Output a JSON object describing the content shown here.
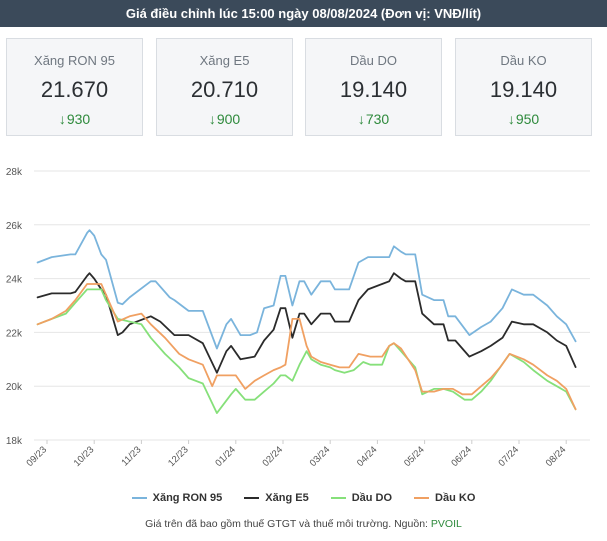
{
  "header": {
    "title": "Giá điều chỉnh lúc 15:00 ngày 08/08/2024 (Đơn vị: VNĐ/lít)"
  },
  "cards": [
    {
      "name": "Xăng RON 95",
      "price": "21.670",
      "change": "930"
    },
    {
      "name": "Xăng E5",
      "price": "20.710",
      "change": "900"
    },
    {
      "name": "Dầu DO",
      "price": "19.140",
      "change": "730"
    },
    {
      "name": "Dầu KO",
      "price": "19.140",
      "change": "950"
    }
  ],
  "footer": {
    "text": "Giá trên đã bao gồm thuế GTGT và thuế môi trường. Nguồn:",
    "source": "PVOIL"
  },
  "colors": {
    "ron95": "#7ab4dc",
    "e5": "#2b2b2b",
    "do": "#86e07a",
    "ko": "#f0a062",
    "down": "#2e8a3c",
    "grid": "#e6e6e6"
  },
  "chart_data": {
    "type": "line",
    "title": "",
    "xlabel": "",
    "ylabel": "",
    "ylim": [
      18000,
      28000
    ],
    "yticks": [
      18000,
      20000,
      22000,
      24000,
      26000,
      28000
    ],
    "ytick_labels": [
      "18k",
      "20k",
      "22k",
      "24k",
      "26k",
      "28k"
    ],
    "xlim": [
      0,
      11.8
    ],
    "xtick_positions": [
      0,
      1,
      2,
      3,
      4,
      5,
      6,
      7,
      8,
      9,
      10,
      11
    ],
    "xtick_labels": [
      "09/23",
      "10/23",
      "11/23",
      "12/23",
      "01/24",
      "02/24",
      "03/24",
      "04/24",
      "05/24",
      "06/24",
      "07/24",
      "08/24"
    ],
    "grid": "horizontal",
    "legend_position": "bottom",
    "series": [
      {
        "name": "Xăng RON 95",
        "color_key": "ron95",
        "points": [
          [
            -0.2,
            24600
          ],
          [
            0.1,
            24800
          ],
          [
            0.5,
            24900
          ],
          [
            0.6,
            24900
          ],
          [
            0.85,
            25700
          ],
          [
            0.9,
            25800
          ],
          [
            1.0,
            25600
          ],
          [
            1.15,
            24900
          ],
          [
            1.25,
            24700
          ],
          [
            1.5,
            23100
          ],
          [
            1.6,
            23050
          ],
          [
            1.75,
            23300
          ],
          [
            2.2,
            23900
          ],
          [
            2.3,
            23900
          ],
          [
            2.6,
            23300
          ],
          [
            2.7,
            23200
          ],
          [
            3.0,
            22800
          ],
          [
            3.3,
            22800
          ],
          [
            3.6,
            21400
          ],
          [
            3.8,
            22300
          ],
          [
            3.9,
            22500
          ],
          [
            4.1,
            21900
          ],
          [
            4.3,
            21900
          ],
          [
            4.45,
            22000
          ],
          [
            4.6,
            22900
          ],
          [
            4.8,
            23000
          ],
          [
            4.95,
            24100
          ],
          [
            5.05,
            24100
          ],
          [
            5.2,
            23000
          ],
          [
            5.35,
            23900
          ],
          [
            5.45,
            23900
          ],
          [
            5.6,
            23400
          ],
          [
            5.8,
            23900
          ],
          [
            6.0,
            23900
          ],
          [
            6.1,
            23600
          ],
          [
            6.4,
            23600
          ],
          [
            6.6,
            24600
          ],
          [
            6.8,
            24800
          ],
          [
            7.1,
            24800
          ],
          [
            7.25,
            24800
          ],
          [
            7.35,
            25200
          ],
          [
            7.5,
            25000
          ],
          [
            7.6,
            24900
          ],
          [
            7.8,
            24900
          ],
          [
            7.95,
            23400
          ],
          [
            8.2,
            23200
          ],
          [
            8.4,
            23200
          ],
          [
            8.5,
            22600
          ],
          [
            8.65,
            22600
          ],
          [
            8.95,
            21900
          ],
          [
            9.2,
            22200
          ],
          [
            9.4,
            22400
          ],
          [
            9.65,
            22900
          ],
          [
            9.85,
            23600
          ],
          [
            10.1,
            23400
          ],
          [
            10.3,
            23400
          ],
          [
            10.6,
            23000
          ],
          [
            10.8,
            22600
          ],
          [
            11.0,
            22300
          ],
          [
            11.2,
            21670
          ]
        ]
      },
      {
        "name": "Xăng E5",
        "color_key": "e5",
        "points": [
          [
            -0.2,
            23300
          ],
          [
            0.1,
            23450
          ],
          [
            0.5,
            23450
          ],
          [
            0.6,
            23500
          ],
          [
            0.85,
            24100
          ],
          [
            0.9,
            24200
          ],
          [
            1.0,
            24000
          ],
          [
            1.15,
            23600
          ],
          [
            1.25,
            23400
          ],
          [
            1.5,
            21900
          ],
          [
            1.6,
            22000
          ],
          [
            1.75,
            22300
          ],
          [
            2.2,
            22600
          ],
          [
            2.4,
            22400
          ],
          [
            2.7,
            21900
          ],
          [
            3.0,
            21900
          ],
          [
            3.3,
            21600
          ],
          [
            3.6,
            20500
          ],
          [
            3.8,
            21300
          ],
          [
            3.9,
            21500
          ],
          [
            4.1,
            21000
          ],
          [
            4.4,
            21100
          ],
          [
            4.6,
            21700
          ],
          [
            4.8,
            22100
          ],
          [
            4.95,
            22900
          ],
          [
            5.05,
            22900
          ],
          [
            5.2,
            21800
          ],
          [
            5.35,
            22700
          ],
          [
            5.45,
            22700
          ],
          [
            5.6,
            22300
          ],
          [
            5.8,
            22700
          ],
          [
            6.0,
            22700
          ],
          [
            6.1,
            22400
          ],
          [
            6.4,
            22400
          ],
          [
            6.6,
            23200
          ],
          [
            6.8,
            23600
          ],
          [
            7.1,
            23800
          ],
          [
            7.25,
            23900
          ],
          [
            7.35,
            24200
          ],
          [
            7.5,
            24000
          ],
          [
            7.6,
            23900
          ],
          [
            7.8,
            23900
          ],
          [
            7.95,
            22700
          ],
          [
            8.2,
            22300
          ],
          [
            8.4,
            22300
          ],
          [
            8.5,
            21700
          ],
          [
            8.65,
            21700
          ],
          [
            8.95,
            21100
          ],
          [
            9.2,
            21300
          ],
          [
            9.4,
            21500
          ],
          [
            9.65,
            21800
          ],
          [
            9.85,
            22400
          ],
          [
            10.1,
            22300
          ],
          [
            10.3,
            22300
          ],
          [
            10.6,
            22000
          ],
          [
            10.8,
            21700
          ],
          [
            11.0,
            21500
          ],
          [
            11.2,
            20710
          ]
        ]
      },
      {
        "name": "Dầu DO",
        "color_key": "do",
        "points": [
          [
            -0.2,
            22300
          ],
          [
            0.1,
            22500
          ],
          [
            0.4,
            22700
          ],
          [
            0.6,
            23100
          ],
          [
            0.85,
            23600
          ],
          [
            1.15,
            23600
          ],
          [
            1.25,
            23200
          ],
          [
            1.5,
            22500
          ],
          [
            1.75,
            22400
          ],
          [
            2.0,
            22300
          ],
          [
            2.2,
            21800
          ],
          [
            2.5,
            21200
          ],
          [
            2.8,
            20700
          ],
          [
            3.0,
            20300
          ],
          [
            3.3,
            20100
          ],
          [
            3.6,
            19000
          ],
          [
            3.9,
            19700
          ],
          [
            4.0,
            19900
          ],
          [
            4.2,
            19500
          ],
          [
            4.4,
            19500
          ],
          [
            4.6,
            19800
          ],
          [
            4.8,
            20100
          ],
          [
            4.95,
            20400
          ],
          [
            5.05,
            20400
          ],
          [
            5.2,
            20200
          ],
          [
            5.35,
            20800
          ],
          [
            5.5,
            21300
          ],
          [
            5.6,
            21000
          ],
          [
            5.8,
            20800
          ],
          [
            6.0,
            20700
          ],
          [
            6.1,
            20600
          ],
          [
            6.3,
            20500
          ],
          [
            6.5,
            20600
          ],
          [
            6.7,
            20900
          ],
          [
            6.85,
            20800
          ],
          [
            7.1,
            20800
          ],
          [
            7.25,
            21500
          ],
          [
            7.35,
            21600
          ],
          [
            7.5,
            21300
          ],
          [
            7.8,
            20700
          ],
          [
            7.95,
            19700
          ],
          [
            8.2,
            19900
          ],
          [
            8.4,
            19900
          ],
          [
            8.6,
            19800
          ],
          [
            8.85,
            19500
          ],
          [
            9.0,
            19500
          ],
          [
            9.2,
            19800
          ],
          [
            9.4,
            20200
          ],
          [
            9.6,
            20700
          ],
          [
            9.8,
            21200
          ],
          [
            10.1,
            20900
          ],
          [
            10.3,
            20600
          ],
          [
            10.6,
            20200
          ],
          [
            10.8,
            20000
          ],
          [
            11.0,
            19800
          ],
          [
            11.2,
            19140
          ]
        ]
      },
      {
        "name": "Dầu KO",
        "color_key": "ko",
        "points": [
          [
            -0.2,
            22300
          ],
          [
            0.1,
            22500
          ],
          [
            0.4,
            22800
          ],
          [
            0.6,
            23200
          ],
          [
            0.85,
            23800
          ],
          [
            1.15,
            23800
          ],
          [
            1.25,
            23400
          ],
          [
            1.5,
            22400
          ],
          [
            1.75,
            22600
          ],
          [
            2.0,
            22700
          ],
          [
            2.2,
            22300
          ],
          [
            2.5,
            21800
          ],
          [
            2.8,
            21200
          ],
          [
            3.0,
            21000
          ],
          [
            3.3,
            20800
          ],
          [
            3.5,
            20000
          ],
          [
            3.6,
            20400
          ],
          [
            3.8,
            20400
          ],
          [
            4.0,
            20400
          ],
          [
            4.2,
            19900
          ],
          [
            4.4,
            20200
          ],
          [
            4.6,
            20400
          ],
          [
            4.8,
            20600
          ],
          [
            4.95,
            20700
          ],
          [
            5.05,
            20800
          ],
          [
            5.2,
            22500
          ],
          [
            5.35,
            22500
          ],
          [
            5.5,
            21500
          ],
          [
            5.6,
            21100
          ],
          [
            5.8,
            20900
          ],
          [
            6.0,
            20800
          ],
          [
            6.2,
            20700
          ],
          [
            6.4,
            20700
          ],
          [
            6.6,
            21200
          ],
          [
            6.85,
            21100
          ],
          [
            7.1,
            21100
          ],
          [
            7.25,
            21500
          ],
          [
            7.35,
            21600
          ],
          [
            7.5,
            21400
          ],
          [
            7.8,
            20600
          ],
          [
            7.95,
            19800
          ],
          [
            8.2,
            19800
          ],
          [
            8.4,
            19900
          ],
          [
            8.6,
            19900
          ],
          [
            8.8,
            19700
          ],
          [
            9.0,
            19700
          ],
          [
            9.2,
            20000
          ],
          [
            9.4,
            20300
          ],
          [
            9.6,
            20700
          ],
          [
            9.8,
            21200
          ],
          [
            10.1,
            21000
          ],
          [
            10.3,
            20800
          ],
          [
            10.6,
            20400
          ],
          [
            10.8,
            20200
          ],
          [
            11.0,
            19900
          ],
          [
            11.2,
            19140
          ]
        ]
      }
    ]
  }
}
